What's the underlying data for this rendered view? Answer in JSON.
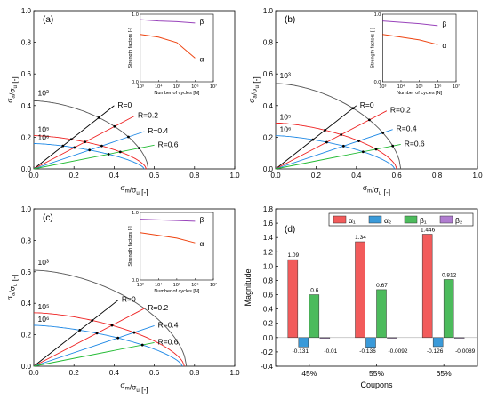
{
  "colors": {
    "R0": "#000000",
    "R02": "#ee2222",
    "R04": "#1e88e5",
    "R06": "#22bb33",
    "N3": "#555555",
    "N5": "#ee2222",
    "N6": "#1e88e5",
    "alpha": "#ee4411",
    "beta": "#9944bb",
    "bar_a1": "#f25b5b",
    "bar_a2": "#3a9ad9",
    "bar_b1": "#4cbb5c",
    "bar_b2": "#b07cd0"
  },
  "chart_data": [
    {
      "type": "line",
      "panel_label": "(a)",
      "xlabel": "σm/σu [-]",
      "ylabel": "σa/σu [-]",
      "xlim": [
        0,
        1
      ],
      "ylim": [
        0,
        1
      ],
      "xticks": [
        "0.0",
        "0.2",
        "0.4",
        "0.6",
        "0.8",
        "1.0"
      ],
      "yticks": [
        "0.0",
        "0.2",
        "0.4",
        "0.6",
        "0.8",
        "1.0"
      ],
      "ratio_lines": [
        {
          "name": "R=0",
          "slope": 1.0,
          "x_end": 0.4
        },
        {
          "name": "R=0.2",
          "slope": 0.667,
          "x_end": 0.5
        },
        {
          "name": "R=0.4",
          "slope": 0.429,
          "x_end": 0.55
        },
        {
          "name": "R=0.6",
          "slope": 0.25,
          "x_end": 0.6
        }
      ],
      "cld_curves": [
        {
          "name": "10³",
          "a0": 0.43,
          "xc": 0.57,
          "p": 1.7
        },
        {
          "name": "10⁵",
          "a0": 0.21,
          "xc": 0.56,
          "p": 1.6
        },
        {
          "name": "10⁶",
          "a0": 0.16,
          "xc": 0.55,
          "p": 1.5
        }
      ],
      "inset": {
        "xlabel": "Number of cycles [N]",
        "ylabel": "Strength factors [-]",
        "xticks": [
          "10³",
          "10⁴",
          "10⁵",
          "10⁶",
          "10⁷"
        ],
        "yticks": [
          "0.0",
          "1.0"
        ],
        "series": [
          {
            "name": "β",
            "x": [
              3,
              4,
              5,
              6
            ],
            "y": [
              0.92,
              0.9,
              0.89,
              0.87
            ]
          },
          {
            "name": "α",
            "x": [
              3,
              4,
              5,
              6
            ],
            "y": [
              0.7,
              0.66,
              0.58,
              0.35
            ]
          }
        ]
      }
    },
    {
      "type": "line",
      "panel_label": "(b)",
      "xlabel": "σm/σu [-]",
      "ylabel": "σa/σu [-]",
      "xlim": [
        0,
        1
      ],
      "ylim": [
        0,
        1
      ],
      "xticks": [
        "0.0",
        "0.2",
        "0.4",
        "0.6",
        "0.8",
        "1.0"
      ],
      "yticks": [
        "0.0",
        "0.2",
        "0.4",
        "0.6",
        "0.8",
        "1.0"
      ],
      "ratio_lines": [
        {
          "name": "R=0",
          "slope": 1.0,
          "x_end": 0.4
        },
        {
          "name": "R=0.2",
          "slope": 0.667,
          "x_end": 0.55
        },
        {
          "name": "R=0.4",
          "slope": 0.429,
          "x_end": 0.58
        },
        {
          "name": "R=0.6",
          "slope": 0.25,
          "x_end": 0.62
        }
      ],
      "cld_curves": [
        {
          "name": "10³",
          "a0": 0.54,
          "xc": 0.62,
          "p": 1.7
        },
        {
          "name": "10⁵",
          "a0": 0.29,
          "xc": 0.6,
          "p": 1.6
        },
        {
          "name": "10⁶",
          "a0": 0.21,
          "xc": 0.59,
          "p": 1.5
        }
      ],
      "inset": {
        "xlabel": "Number of cycles [N]",
        "ylabel": "Strength factors [-]",
        "xticks": [
          "10³",
          "10⁴",
          "10⁵",
          "10⁶",
          "10⁷"
        ],
        "yticks": [
          "0.0",
          "1.0"
        ],
        "series": [
          {
            "name": "β",
            "x": [
              3,
              4,
              5,
              6
            ],
            "y": [
              0.9,
              0.88,
              0.86,
              0.83
            ]
          },
          {
            "name": "α",
            "x": [
              3,
              4,
              5,
              6
            ],
            "y": [
              0.7,
              0.66,
              0.62,
              0.55
            ]
          }
        ]
      }
    },
    {
      "type": "line",
      "panel_label": "(c)",
      "xlabel": "σm/σu [-]",
      "ylabel": "σa/σu [-]",
      "xlim": [
        0,
        1
      ],
      "ylim": [
        0,
        1
      ],
      "xticks": [
        "0.0",
        "0.2",
        "0.4",
        "0.6",
        "0.8",
        "1.0"
      ],
      "yticks": [
        "0.0",
        "0.2",
        "0.4",
        "0.6",
        "0.8",
        "1.0"
      ],
      "ratio_lines": [
        {
          "name": "R=0",
          "slope": 1.0,
          "x_end": 0.42
        },
        {
          "name": "R=0.2",
          "slope": 0.667,
          "x_end": 0.55
        },
        {
          "name": "R=0.4",
          "slope": 0.429,
          "x_end": 0.6
        },
        {
          "name": "R=0.6",
          "slope": 0.25,
          "x_end": 0.6
        }
      ],
      "cld_curves": [
        {
          "name": "10³",
          "a0": 0.61,
          "xc": 0.76,
          "p": 1.7
        },
        {
          "name": "10⁵",
          "a0": 0.34,
          "xc": 0.75,
          "p": 1.6
        },
        {
          "name": "10⁶",
          "a0": 0.26,
          "xc": 0.74,
          "p": 1.5
        }
      ],
      "inset": {
        "xlabel": "Number of cycles [N]",
        "ylabel": "Strength factors [-]",
        "xticks": [
          "10³",
          "10⁴",
          "10⁵",
          "10⁶",
          "10⁷"
        ],
        "yticks": [
          "0.0",
          "1.0"
        ],
        "series": [
          {
            "name": "β",
            "x": [
              3,
              4,
              5,
              6
            ],
            "y": [
              0.9,
              0.89,
              0.88,
              0.87
            ]
          },
          {
            "name": "α",
            "x": [
              3,
              4,
              5,
              6
            ],
            "y": [
              0.7,
              0.66,
              0.62,
              0.55
            ]
          }
        ]
      }
    },
    {
      "type": "bar",
      "panel_label": "(d)",
      "xlabel": "Coupons",
      "ylabel": "Magnitude",
      "categories": [
        "45%",
        "55%",
        "65%"
      ],
      "ylim": [
        -0.4,
        1.8
      ],
      "yticks": [
        "-0.4",
        "-0.2",
        "0.0",
        "0.2",
        "0.4",
        "0.6",
        "0.8",
        "1.0",
        "1.2",
        "1.4",
        "1.6",
        "1.8"
      ],
      "legend": [
        "α₁",
        "α₂",
        "β₁",
        "β₂"
      ],
      "series": [
        {
          "name": "α₁",
          "values": [
            1.09,
            1.34,
            1.446
          ],
          "labels": [
            "1.09",
            "1.34",
            "1.446"
          ]
        },
        {
          "name": "α₂",
          "values": [
            -0.131,
            -0.136,
            -0.126
          ],
          "labels": [
            "-0.131",
            "-0.136",
            "-0.126"
          ]
        },
        {
          "name": "β₁",
          "values": [
            0.6,
            0.67,
            0.812
          ],
          "labels": [
            "0.6",
            "0.67",
            "0.812"
          ]
        },
        {
          "name": "β₂",
          "values": [
            -0.01,
            -0.0092,
            -0.0089
          ],
          "labels": [
            "-0.01",
            "-0.0092",
            "-0.0089"
          ]
        }
      ]
    }
  ]
}
